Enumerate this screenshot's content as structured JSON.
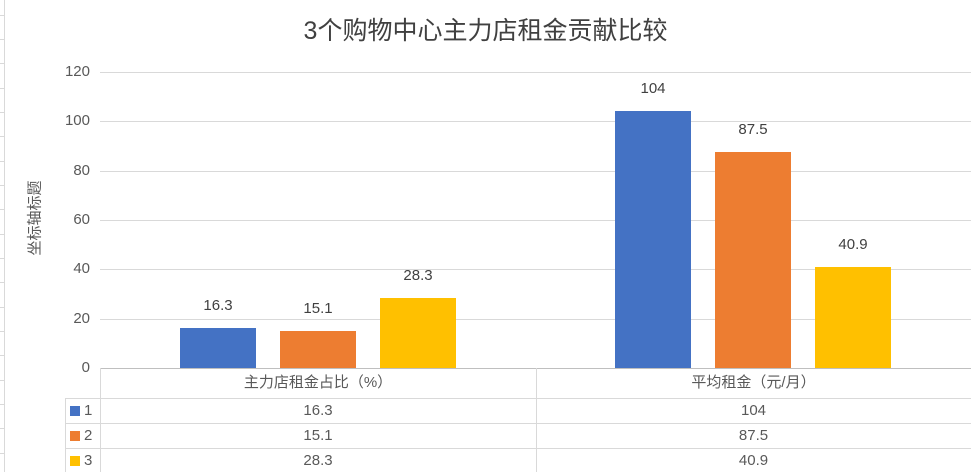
{
  "chart_data": {
    "type": "bar",
    "title": "3个购物中心主力店租金贡献比较",
    "ylabel": "坐标轴标题",
    "xlabel": "",
    "categories": [
      "主力店租金占比（%）",
      "平均租金（元/月）"
    ],
    "series": [
      {
        "name": "1",
        "color": "#4472C4",
        "values": [
          16.3,
          104
        ]
      },
      {
        "name": "2",
        "color": "#ED7D31",
        "values": [
          15.1,
          87.5
        ]
      },
      {
        "name": "3",
        "color": "#FFC000",
        "values": [
          28.3,
          40.9
        ]
      }
    ],
    "ylim": [
      0,
      120
    ],
    "yticks": [
      0,
      20,
      40,
      60,
      80,
      100,
      120
    ],
    "grid": true,
    "data_labels": true,
    "legend_position": "data-table-below-chart",
    "colors": {
      "gridline": "#D9D9D9",
      "axis_line": "#BFBFBF",
      "table_border": "#D9D9D9",
      "title_text": "#404040",
      "axis_text": "#595959",
      "background": "#ffffff"
    }
  }
}
